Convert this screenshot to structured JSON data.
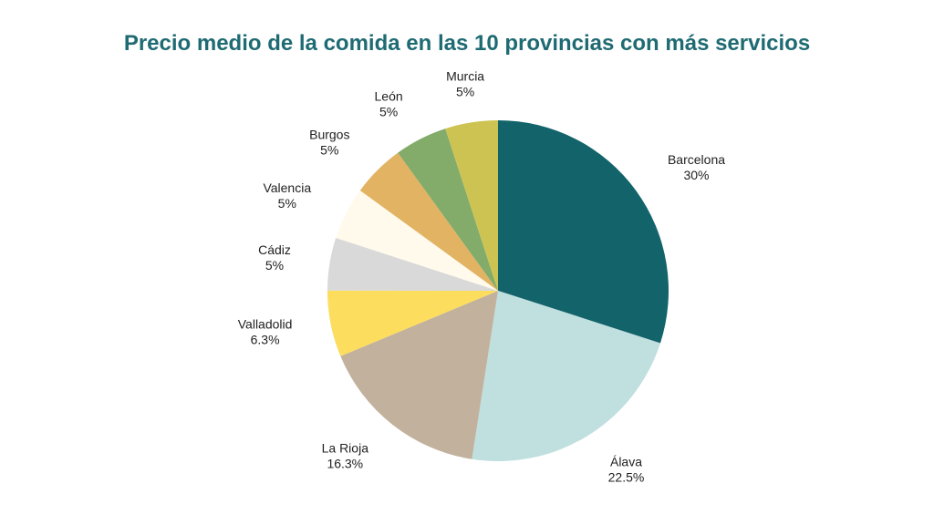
{
  "chart_data": {
    "type": "pie",
    "title": "Precio medio de la comida en las 10 provincias con más servicios",
    "start_angle_deg": 0,
    "direction": "clockwise",
    "slices": [
      {
        "label": "Barcelona",
        "value": 30,
        "value_label": "30%",
        "color": "#13636b"
      },
      {
        "label": "Álava",
        "value": 22.5,
        "value_label": "22.5%",
        "color": "#c0dfdf"
      },
      {
        "label": "La Rioja",
        "value": 16.3,
        "value_label": "16.3%",
        "color": "#c2b29d"
      },
      {
        "label": "Valladolid",
        "value": 6.3,
        "value_label": "6.3%",
        "color": "#fcdd5d"
      },
      {
        "label": "Cádiz",
        "value": 5,
        "value_label": "5%",
        "color": "#d9d9d9"
      },
      {
        "label": "Valencia",
        "value": 5,
        "value_label": "5%",
        "color": "#fffaec"
      },
      {
        "label": "Burgos",
        "value": 5,
        "value_label": "5%",
        "color": "#e1b363"
      },
      {
        "label": "León",
        "value": 5,
        "value_label": "5%",
        "color": "#83ab6a"
      },
      {
        "label": "Murcia",
        "value": 5,
        "value_label": "5%",
        "color": "#cdc352"
      }
    ]
  }
}
